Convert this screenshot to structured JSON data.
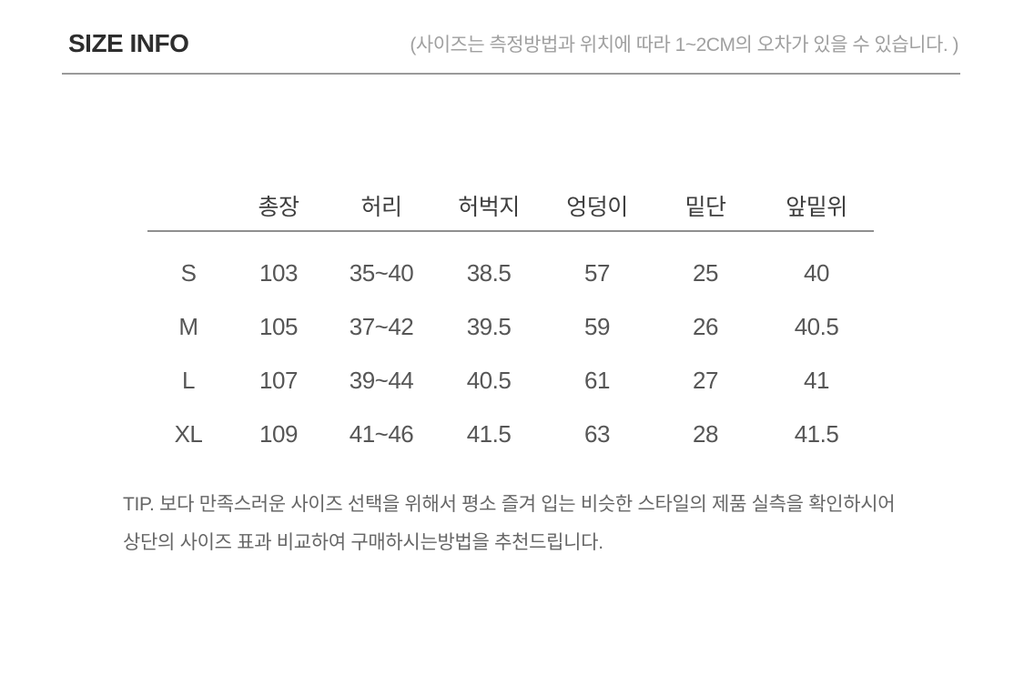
{
  "header": {
    "title": "SIZE INFO",
    "note": "(사이즈는 측정방법과 위치에 따라 1~2CM의 오차가 있을 수 있습니다. )"
  },
  "sizeTable": {
    "columns": [
      "총장",
      "허리",
      "허벅지",
      "엉덩이",
      "밑단",
      "앞밑위"
    ],
    "rows": [
      {
        "size": "S",
        "values": [
          "103",
          "35~40",
          "38.5",
          "57",
          "25",
          "40"
        ]
      },
      {
        "size": "M",
        "values": [
          "105",
          "37~42",
          "39.5",
          "59",
          "26",
          "40.5"
        ]
      },
      {
        "size": "L",
        "values": [
          "107",
          "39~44",
          "40.5",
          "61",
          "27",
          "41"
        ]
      },
      {
        "size": "XL",
        "values": [
          "109",
          "41~46",
          "41.5",
          "63",
          "28",
          "41.5"
        ]
      }
    ]
  },
  "tip": {
    "line1": "TIP. 보다 만족스러운 사이즈 선택을 위해서 평소 즐겨 입는 비슷한 스타일의 제품 실측을 확인하시어",
    "line2": "상단의 사이즈 표과 비교하여 구매하시는방법을 추천드립니다."
  },
  "colors": {
    "title_text": "#2e2e2e",
    "note_text": "#a0a0a0",
    "divider": "#9a9a9a",
    "table_text": "#565656",
    "tip_text": "#666666",
    "background": "#ffffff"
  }
}
